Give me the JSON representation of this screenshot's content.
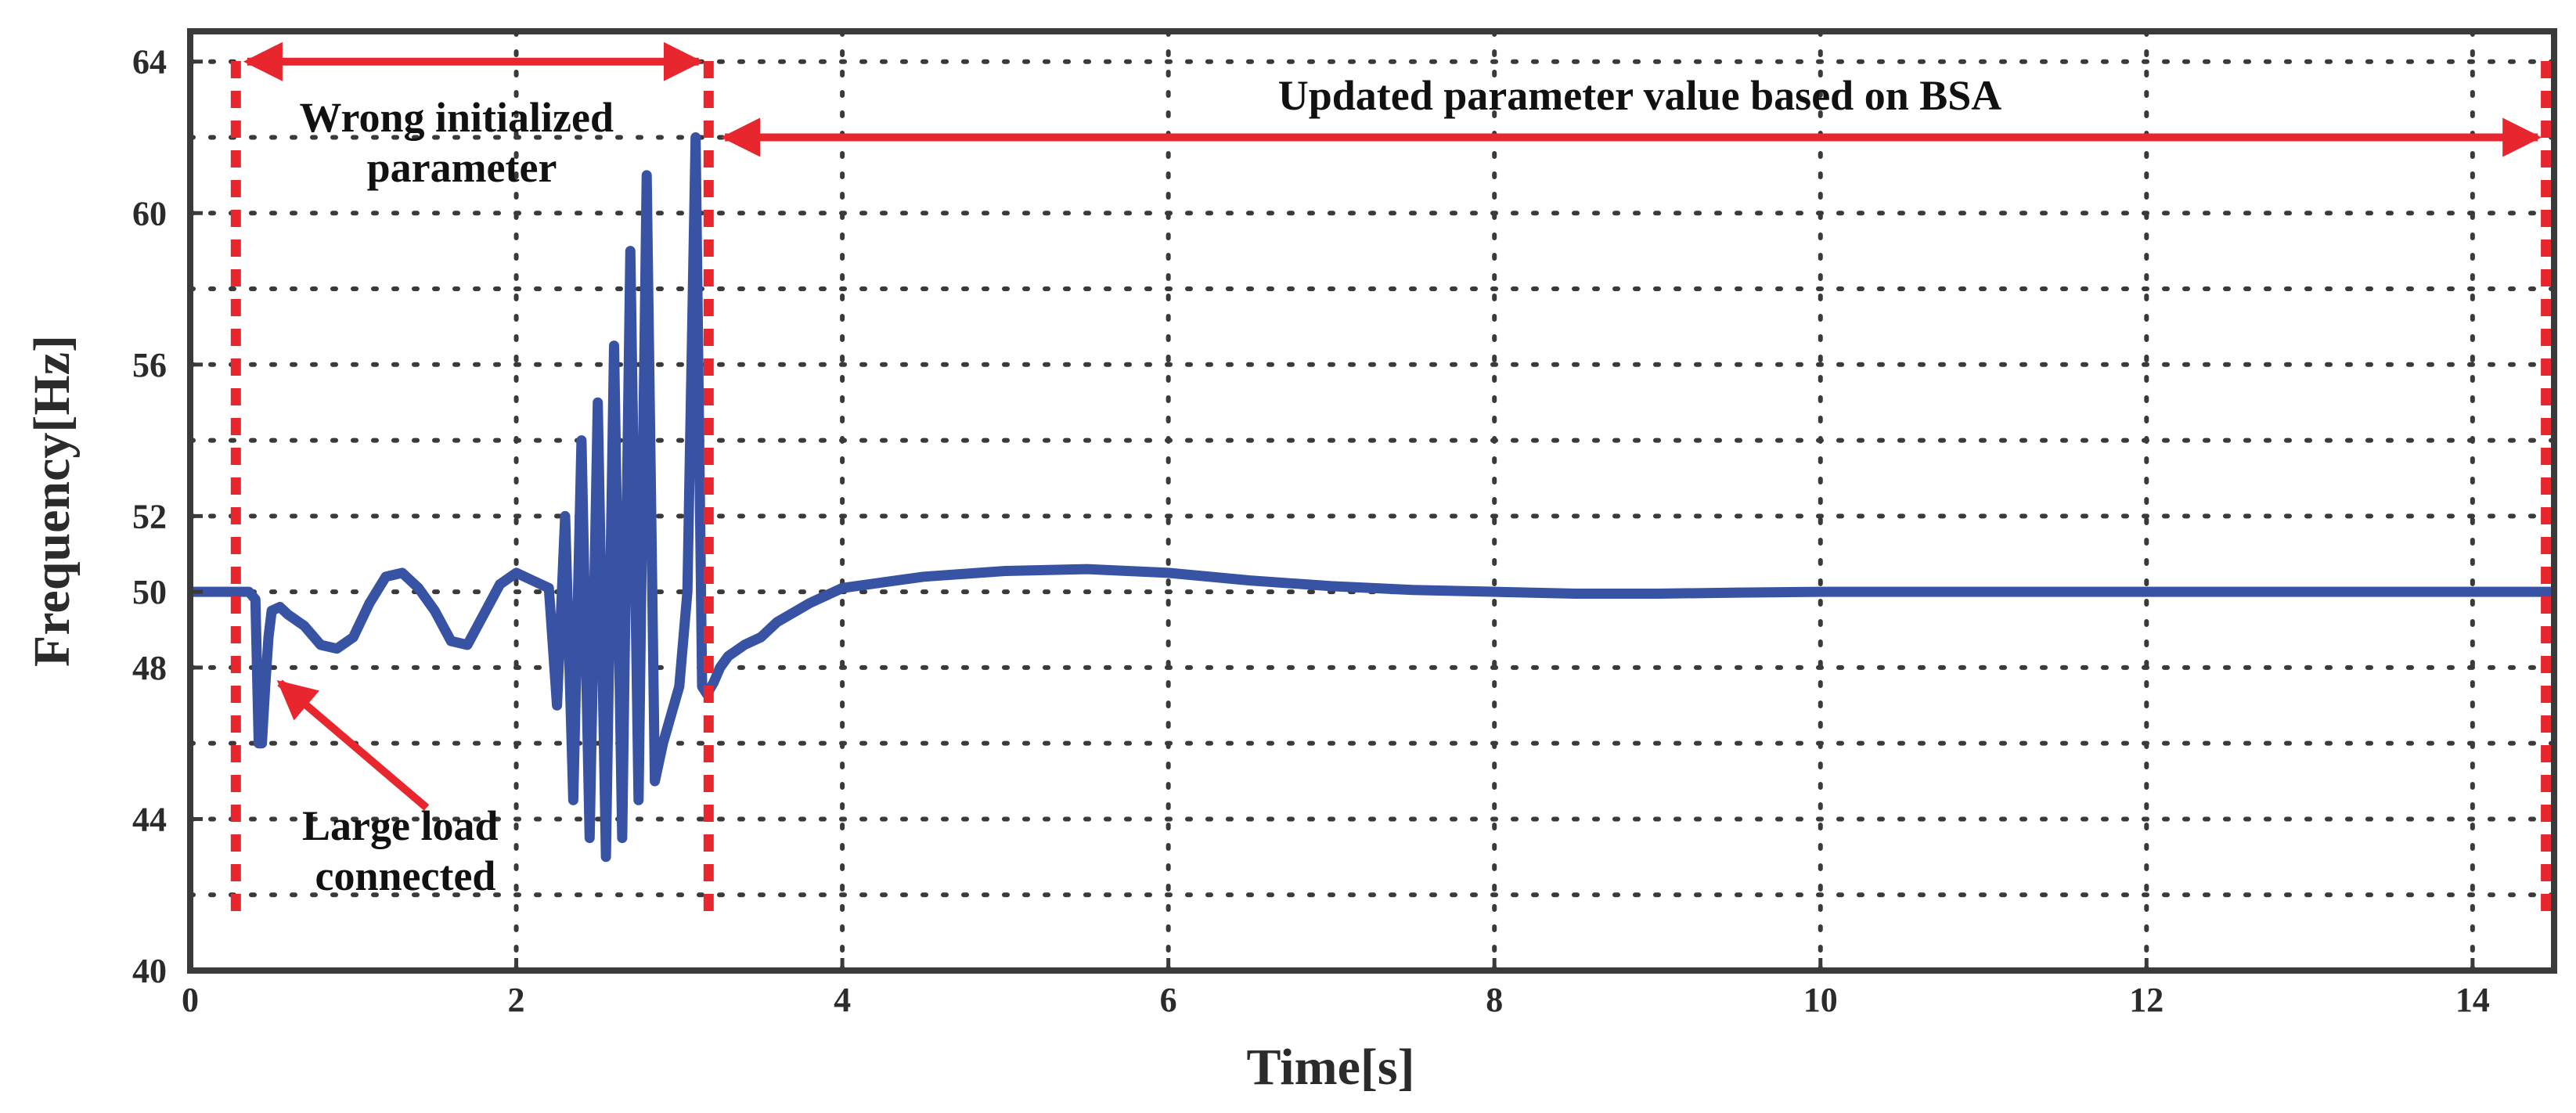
{
  "chart_data": {
    "type": "line",
    "title": "",
    "xlabel": "Time[s]",
    "ylabel": "Frequency[Hz]",
    "xlim": [
      0,
      14.5
    ],
    "ylim": [
      40,
      64.8
    ],
    "xticks": [
      0,
      2,
      4,
      6,
      8,
      10,
      12,
      14
    ],
    "xtick_labels": [
      "0",
      "2",
      "4",
      "6",
      "8",
      "10",
      "12",
      "14"
    ],
    "yticks": [
      40,
      44,
      48,
      50,
      52,
      56,
      60,
      64
    ],
    "ytick_labels": [
      "40",
      "44",
      "48",
      "50",
      "52",
      "56",
      "60",
      "64"
    ],
    "grid_x": [
      2,
      4,
      6,
      8,
      10,
      12,
      14
    ],
    "grid_y": [
      42,
      44,
      46,
      48,
      50,
      52,
      54,
      56,
      58,
      60,
      62,
      64
    ],
    "grid": true,
    "series": [
      {
        "color": "#3953a4",
        "x": [
          0,
          0.2,
          0.36,
          0.4,
          0.42,
          0.44,
          0.46,
          0.48,
          0.5,
          0.55,
          0.6,
          0.7,
          0.8,
          0.9,
          1.0,
          1.1,
          1.2,
          1.3,
          1.4,
          1.5,
          1.6,
          1.7,
          1.8,
          1.9,
          2.0,
          2.1,
          2.2,
          2.25,
          2.3,
          2.35,
          2.4,
          2.45,
          2.5,
          2.55,
          2.6,
          2.65,
          2.7,
          2.75,
          2.8,
          2.85,
          2.9,
          3.0,
          3.05,
          3.1,
          3.14,
          3.17,
          3.21,
          3.25,
          3.3,
          3.4,
          3.5,
          3.6,
          3.8,
          4.0,
          4.5,
          5.0,
          5.5,
          6.0,
          6.5,
          7.0,
          7.5,
          8.0,
          8.5,
          9.0,
          9.5,
          10.0,
          11.0,
          12.0,
          13.0,
          14.0,
          14.5
        ],
        "y": [
          50,
          50,
          50,
          49.8,
          46,
          46,
          47.5,
          48.8,
          49.5,
          49.6,
          49.4,
          49.1,
          48.6,
          48.5,
          48.8,
          49.7,
          50.4,
          50.5,
          50.1,
          49.5,
          48.7,
          48.6,
          49.4,
          50.2,
          50.5,
          50.3,
          50.1,
          47,
          52,
          44.5,
          54,
          43.5,
          55,
          43,
          56.5,
          43.5,
          59,
          44.5,
          61,
          45,
          46,
          47.5,
          50,
          62,
          47.5,
          47.3,
          47.6,
          48,
          48.3,
          48.6,
          48.8,
          49.2,
          49.7,
          50.1,
          50.4,
          50.55,
          50.6,
          50.5,
          50.3,
          50.15,
          50.05,
          50.0,
          49.95,
          49.95,
          49.98,
          50.0,
          50.0,
          50.0,
          50.0,
          50.0,
          50.0
        ]
      }
    ],
    "annotations": [
      {
        "lines": [
          "Wrong initialized",
          "parameter"
        ]
      },
      {
        "lines": [
          "Updated parameter value based on BSA"
        ]
      },
      {
        "lines": [
          "Large load",
          "connected"
        ]
      }
    ],
    "markers": {
      "dashed_verticals_x": [
        0.28,
        3.18,
        14.45
      ],
      "arrows": [
        "double-headed 0.35–3.12 at 64.0",
        "double-headed 3.28–14.4 at 62.0",
        "pointer from text to dip at 0.5"
      ],
      "marker_color": "#e8262d"
    }
  }
}
